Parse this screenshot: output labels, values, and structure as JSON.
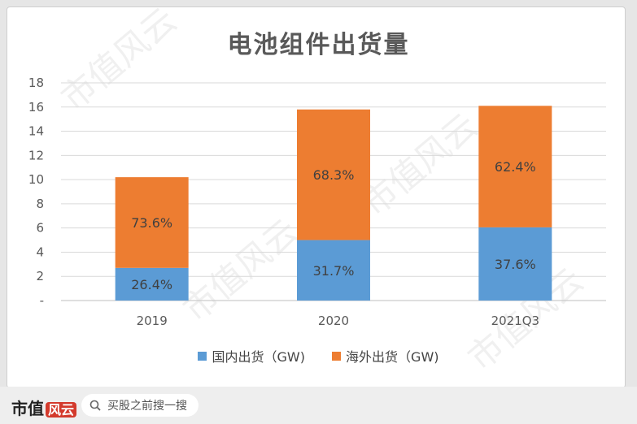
{
  "chart_data": {
    "type": "stacked-bar",
    "title": "电池组件出货量",
    "categories": [
      "2019",
      "2020",
      "2021Q3"
    ],
    "totals": [
      10.2,
      15.8,
      16.1
    ],
    "series": [
      {
        "name": "国内出货（GW)",
        "color": "#5b9bd5",
        "values": [
          2.7,
          5.0,
          6.05
        ],
        "labels": [
          "26.4%",
          "31.7%",
          "37.6%"
        ]
      },
      {
        "name": "海外出货（GW)",
        "color": "#ed7d31",
        "values": [
          7.5,
          10.8,
          10.05
        ],
        "labels": [
          "73.6%",
          "68.3%",
          "62.4%"
        ]
      }
    ],
    "yticks": [
      "-",
      "2",
      "4",
      "6",
      "8",
      "10",
      "12",
      "14",
      "16",
      "18"
    ],
    "ylim": [
      0,
      18
    ],
    "grid": true,
    "legend_position": "bottom"
  },
  "watermark": "市值风云",
  "footer": {
    "logo_text": "市值",
    "logo_badge": "风云",
    "search_placeholder": "买股之前搜一搜",
    "search_icon": "search-icon"
  }
}
